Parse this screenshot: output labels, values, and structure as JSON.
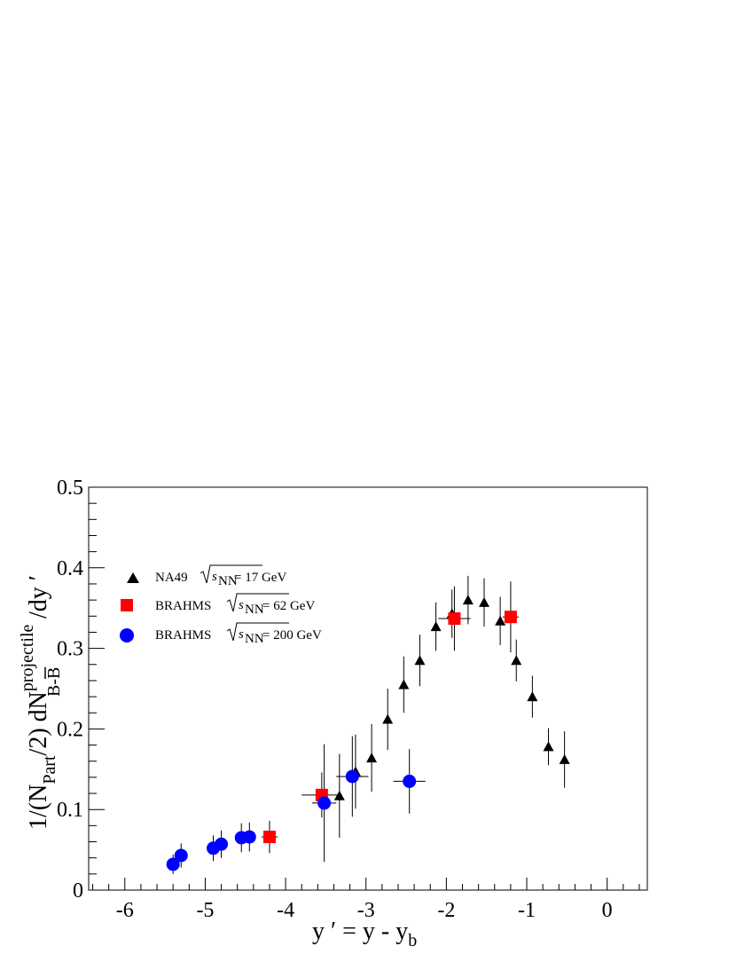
{
  "chart_data": {
    "type": "scatter",
    "xlabel": {
      "main": "y ′ = y - y",
      "sub": "b"
    },
    "ylabel": {
      "p1": "1/(N",
      "p1_sub": "Part",
      "p2": "/2) dN",
      "p2_sup": "projectile",
      "p2_sub": "B-B",
      "p3": "/dy ′"
    },
    "xlim": [
      -6.45,
      0.5
    ],
    "ylim": [
      0,
      0.5
    ],
    "x_ticks": [
      -6,
      -5,
      -4,
      -3,
      -2,
      -1,
      0
    ],
    "x_tick_labels": [
      "-6",
      "-5",
      "-4",
      "-3",
      "-2",
      "-1",
      "0"
    ],
    "y_ticks": [
      0,
      0.1,
      0.2,
      0.3,
      0.4,
      0.5
    ],
    "y_tick_labels": [
      "0",
      "0.1",
      "0.2",
      "0.3",
      "0.4",
      "0.5"
    ],
    "grid": false,
    "legend_position": "top-left",
    "series": [
      {
        "name": "NA49",
        "energy_label": "= 17 GeV",
        "marker": "triangle",
        "color": "#000000",
        "points": [
          {
            "x": -3.33,
            "y": 0.117,
            "yerr": 0.052,
            "xerr": 0
          },
          {
            "x": -3.13,
            "y": 0.147,
            "yerr": 0.046,
            "xerr": 0
          },
          {
            "x": -2.93,
            "y": 0.164,
            "yerr": 0.042,
            "xerr": 0
          },
          {
            "x": -2.73,
            "y": 0.212,
            "yerr": 0.038,
            "xerr": 0
          },
          {
            "x": -2.53,
            "y": 0.255,
            "yerr": 0.035,
            "xerr": 0
          },
          {
            "x": -2.33,
            "y": 0.285,
            "yerr": 0.032,
            "xerr": 0
          },
          {
            "x": -2.13,
            "y": 0.327,
            "yerr": 0.03,
            "xerr": 0
          },
          {
            "x": -1.93,
            "y": 0.343,
            "yerr": 0.03,
            "xerr": 0
          },
          {
            "x": -1.73,
            "y": 0.36,
            "yerr": 0.03,
            "xerr": 0
          },
          {
            "x": -1.53,
            "y": 0.357,
            "yerr": 0.03,
            "xerr": 0
          },
          {
            "x": -1.33,
            "y": 0.334,
            "yerr": 0.03,
            "xerr": 0
          },
          {
            "x": -1.13,
            "y": 0.285,
            "yerr": 0.026,
            "xerr": 0
          },
          {
            "x": -0.93,
            "y": 0.24,
            "yerr": 0.026,
            "xerr": 0
          },
          {
            "x": -0.73,
            "y": 0.178,
            "yerr": 0.023,
            "xerr": 0
          },
          {
            "x": -0.53,
            "y": 0.162,
            "yerr": 0.035,
            "xerr": 0
          }
        ]
      },
      {
        "name": "BRAHMS",
        "energy_label": "= 62 GeV",
        "marker": "square",
        "color": "#ff0000",
        "points": [
          {
            "x": -4.2,
            "y": 0.066,
            "yerr": 0.02,
            "xerr": 0.1
          },
          {
            "x": -3.55,
            "y": 0.118,
            "yerr": 0.028,
            "xerr": 0.25
          },
          {
            "x": -1.9,
            "y": 0.337,
            "yerr": 0.04,
            "xerr": 0.2
          },
          {
            "x": -1.2,
            "y": 0.339,
            "yerr": 0.044,
            "xerr": 0.1
          }
        ]
      },
      {
        "name": "BRAHMS",
        "energy_label": "= 200 GeV",
        "marker": "circle",
        "color": "#0000ff",
        "points": [
          {
            "x": -5.4,
            "y": 0.032,
            "yerr": 0.012,
            "xerr": 0
          },
          {
            "x": -5.3,
            "y": 0.043,
            "yerr": 0.015,
            "xerr": 0
          },
          {
            "x": -4.9,
            "y": 0.052,
            "yerr": 0.016,
            "xerr": 0
          },
          {
            "x": -4.8,
            "y": 0.057,
            "yerr": 0.017,
            "xerr": 0
          },
          {
            "x": -4.55,
            "y": 0.065,
            "yerr": 0.018,
            "xerr": 0
          },
          {
            "x": -4.45,
            "y": 0.066,
            "yerr": 0.018,
            "xerr": 0
          },
          {
            "x": -3.52,
            "y": 0.108,
            "yerr": 0.073,
            "xerr": 0.15
          },
          {
            "x": -3.17,
            "y": 0.141,
            "yerr": 0.05,
            "xerr": 0.2
          },
          {
            "x": -2.46,
            "y": 0.135,
            "yerr": 0.04,
            "xerr": 0.2
          }
        ]
      }
    ]
  }
}
